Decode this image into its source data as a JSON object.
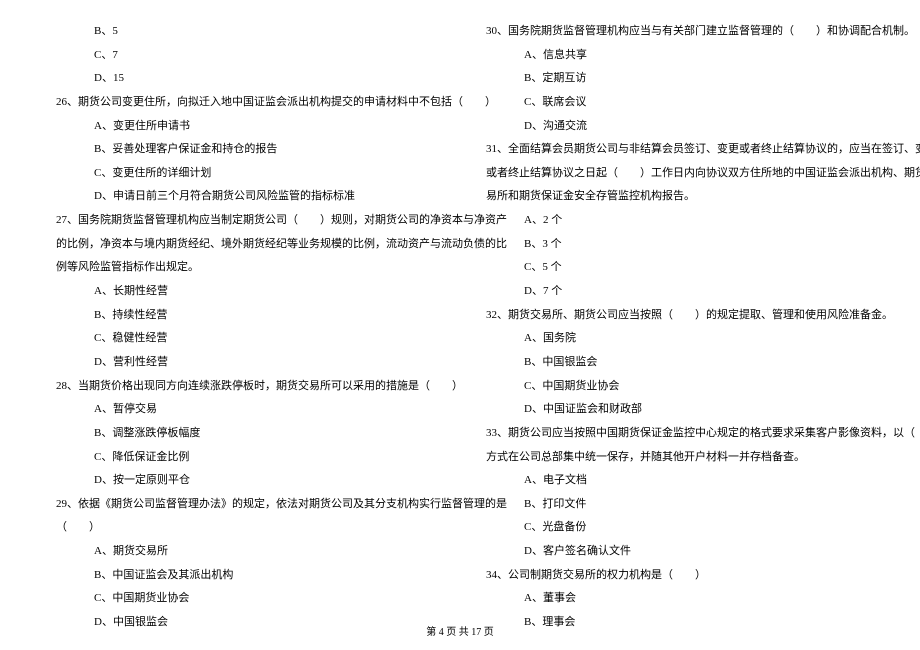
{
  "footer": "第 4 页 共 17 页",
  "left": [
    {
      "cls": "indent1",
      "t": "B、5"
    },
    {
      "cls": "indent1",
      "t": "C、7"
    },
    {
      "cls": "indent1",
      "t": "D、15"
    },
    {
      "cls": "indent0",
      "t": "26、期货公司变更住所，向拟迁入地中国证监会派出机构提交的申请材料中不包括（　　）"
    },
    {
      "cls": "indent1",
      "t": "A、变更住所申请书"
    },
    {
      "cls": "indent1",
      "t": "B、妥善处理客户保证金和持仓的报告"
    },
    {
      "cls": "indent1",
      "t": "C、变更住所的详细计划"
    },
    {
      "cls": "indent1",
      "t": "D、申请日前三个月符合期货公司风险监管的指标标准"
    },
    {
      "cls": "indent0",
      "t": "27、国务院期货监督管理机构应当制定期货公司（　　）规则，对期货公司的净资本与净资产"
    },
    {
      "cls": "indent0",
      "t": "的比例，净资本与境内期货经纪、境外期货经纪等业务规模的比例，流动资产与流动负债的比"
    },
    {
      "cls": "indent0",
      "t": "例等风险监管指标作出规定。"
    },
    {
      "cls": "indent1",
      "t": "A、长期性经营"
    },
    {
      "cls": "indent1",
      "t": "B、持续性经营"
    },
    {
      "cls": "indent1",
      "t": "C、稳健性经营"
    },
    {
      "cls": "indent1",
      "t": "D、营利性经营"
    },
    {
      "cls": "indent0",
      "t": "28、当期货价格出现同方向连续涨跌停板时，期货交易所可以采用的措施是（　　）"
    },
    {
      "cls": "indent1",
      "t": "A、暂停交易"
    },
    {
      "cls": "indent1",
      "t": "B、调整涨跌停板幅度"
    },
    {
      "cls": "indent1",
      "t": "C、降低保证金比例"
    },
    {
      "cls": "indent1",
      "t": "D、按一定原则平仓"
    },
    {
      "cls": "indent0",
      "t": "29、依据《期货公司监督管理办法》的规定，依法对期货公司及其分支机构实行监督管理的是"
    },
    {
      "cls": "indent0",
      "t": "（　　）"
    },
    {
      "cls": "indent1",
      "t": "A、期货交易所"
    },
    {
      "cls": "indent1",
      "t": "B、中国证监会及其派出机构"
    },
    {
      "cls": "indent1",
      "t": "C、中国期货业协会"
    },
    {
      "cls": "indent1",
      "t": "D、中国银监会"
    }
  ],
  "right": [
    {
      "cls": "indent0",
      "t": "30、国务院期货监督管理机构应当与有关部门建立监督管理的（　　）和协调配合机制。"
    },
    {
      "cls": "indent1",
      "t": "A、信息共享"
    },
    {
      "cls": "indent1",
      "t": "B、定期互访"
    },
    {
      "cls": "indent1",
      "t": "C、联席会议"
    },
    {
      "cls": "indent1",
      "t": "D、沟通交流"
    },
    {
      "cls": "indent0",
      "t": "31、全面结算会员期货公司与非结算会员签订、变更或者终止结算协议的，应当在签订、变更"
    },
    {
      "cls": "indent0",
      "t": "或者终止结算协议之日起（　　）工作日内向协议双方住所地的中国证监会派出机构、期货交"
    },
    {
      "cls": "indent0",
      "t": "易所和期货保证金安全存管监控机构报告。"
    },
    {
      "cls": "indent1",
      "t": "A、2 个"
    },
    {
      "cls": "indent1",
      "t": "B、3 个"
    },
    {
      "cls": "indent1",
      "t": "C、5 个"
    },
    {
      "cls": "indent1",
      "t": "D、7 个"
    },
    {
      "cls": "indent0",
      "t": "32、期货交易所、期货公司应当按照（　　）的规定提取、管理和使用风险准备金。"
    },
    {
      "cls": "indent1",
      "t": "A、国务院"
    },
    {
      "cls": "indent1",
      "t": "B、中国银监会"
    },
    {
      "cls": "indent1",
      "t": "C、中国期货业协会"
    },
    {
      "cls": "indent1",
      "t": "D、中国证监会和财政部"
    },
    {
      "cls": "indent0",
      "t": "33、期货公司应当按照中国期货保证金监控中心规定的格式要求采集客户影像资料，以（　　）"
    },
    {
      "cls": "indent0",
      "t": "方式在公司总部集中统一保存，并随其他开户材料一并存档备查。"
    },
    {
      "cls": "indent1",
      "t": "A、电子文档"
    },
    {
      "cls": "indent1",
      "t": "B、打印文件"
    },
    {
      "cls": "indent1",
      "t": "C、光盘备份"
    },
    {
      "cls": "indent1",
      "t": "D、客户签名确认文件"
    },
    {
      "cls": "indent0",
      "t": "34、公司制期货交易所的权力机构是（　　）"
    },
    {
      "cls": "indent1",
      "t": "A、董事会"
    },
    {
      "cls": "indent1",
      "t": "B、理事会"
    }
  ]
}
